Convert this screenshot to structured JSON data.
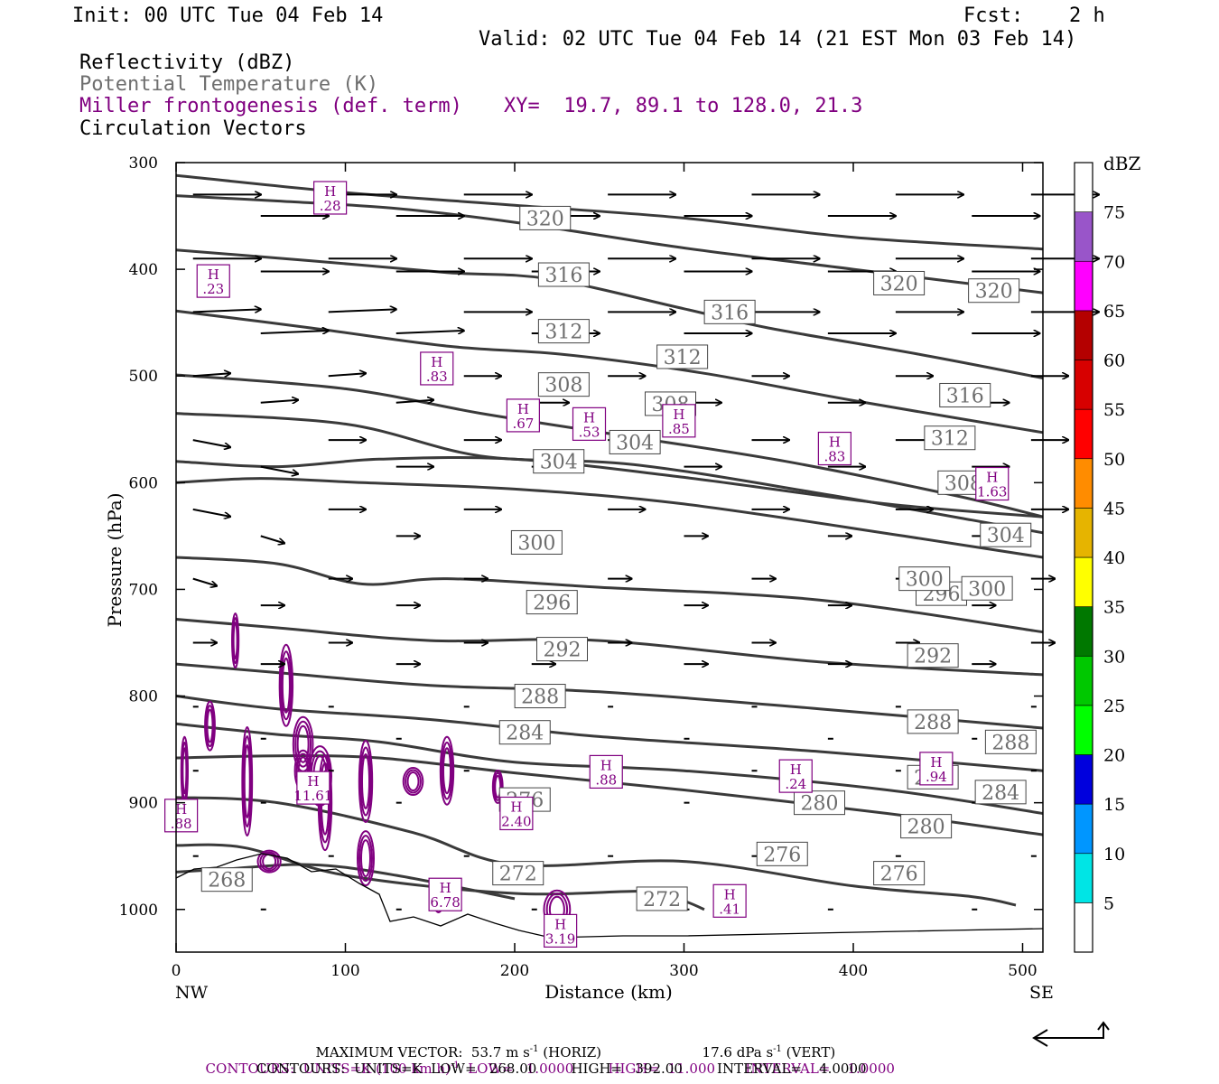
{
  "header": {
    "init": "Init: 00 UTC Tue 04 Feb 14",
    "fcst_label": "Fcst:",
    "fcst_value": "2 h",
    "valid": "Valid: 02 UTC Tue 04 Feb 14 (21 EST Mon 03 Feb 14)",
    "field1": "Reflectivity (dBZ)",
    "field2": "Potential Temperature (K)",
    "field3": "Miller frontogenesis (def. term)",
    "xy": "XY=  19.7, 89.1 to 128.0, 21.3",
    "field4": "Circulation Vectors"
  },
  "colors": {
    "theta": "#3a3a3a",
    "fronto": "#800080",
    "theta_label": "#6e6e6e"
  },
  "chart_data": {
    "type": "line",
    "title": "",
    "xlabel": "Distance (km)",
    "ylabel": "Pressure (hPa)",
    "xlim": [
      0,
      512
    ],
    "ylim": [
      1040,
      300
    ],
    "x_ticks": [
      "0",
      "100",
      "200",
      "300",
      "400",
      "500"
    ],
    "y_ticks": [
      "300",
      "400",
      "500",
      "600",
      "700",
      "800",
      "900",
      "1000"
    ],
    "x_end_labels": {
      "left": "NW",
      "right": "SE"
    },
    "theta_contours": [
      {
        "label": "320",
        "points": [
          [
            0,
            312
          ],
          [
            100,
            328
          ],
          [
            200,
            340
          ],
          [
            300,
            352
          ],
          [
            400,
            370
          ],
          [
            512,
            381
          ]
        ]
      },
      {
        "label": "320",
        "points": [
          [
            0,
            331
          ],
          [
            60,
            336
          ],
          [
            130,
            343
          ],
          [
            200,
            356
          ],
          [
            300,
            380
          ],
          [
            400,
            400
          ],
          [
            512,
            422
          ]
        ]
      },
      {
        "label": "316",
        "points": [
          [
            0,
            382
          ],
          [
            80,
            392
          ],
          [
            160,
            403
          ],
          [
            220,
            409
          ],
          [
            300,
            437
          ],
          [
            350,
            455
          ],
          [
            440,
            480
          ],
          [
            512,
            502
          ]
        ]
      },
      {
        "label": "316",
        "points": [
          [
            0,
            439
          ],
          [
            80,
            455
          ],
          [
            160,
            472
          ],
          [
            230,
            480
          ],
          [
            310,
            497
          ],
          [
            400,
            523
          ],
          [
            512,
            553
          ]
        ]
      },
      {
        "label": "312",
        "points": [
          [
            0,
            499
          ],
          [
            100,
            512
          ],
          [
            180,
            535
          ],
          [
            260,
            555
          ],
          [
            360,
            580
          ],
          [
            460,
            612
          ],
          [
            512,
            632
          ]
        ]
      },
      {
        "label": "308",
        "points": [
          [
            0,
            535
          ],
          [
            100,
            545
          ],
          [
            180,
            575
          ],
          [
            270,
            583
          ],
          [
            380,
            610
          ],
          [
            470,
            635
          ],
          [
            512,
            647
          ]
        ]
      },
      {
        "label": "304",
        "points": [
          [
            0,
            580
          ],
          [
            60,
            585
          ],
          [
            120,
            578
          ],
          [
            200,
            578
          ],
          [
            300,
            595
          ],
          [
            420,
            620
          ],
          [
            512,
            632
          ]
        ]
      },
      {
        "label": "300",
        "points": [
          [
            0,
            600
          ],
          [
            50,
            596
          ],
          [
            110,
            600
          ],
          [
            200,
            606
          ],
          [
            300,
            620
          ],
          [
            430,
            650
          ],
          [
            512,
            670
          ]
        ]
      },
      {
        "label": "300",
        "points": [
          [
            0,
            670
          ],
          [
            60,
            676
          ],
          [
            110,
            695
          ],
          [
            160,
            690
          ],
          [
            250,
            698
          ],
          [
            380,
            710
          ],
          [
            512,
            740
          ]
        ]
      },
      {
        "label": "296",
        "points": [
          [
            0,
            728
          ],
          [
            60,
            736
          ],
          [
            150,
            748
          ],
          [
            250,
            748
          ],
          [
            380,
            768
          ],
          [
            512,
            780
          ]
        ]
      },
      {
        "label": "292",
        "points": [
          [
            0,
            770
          ],
          [
            60,
            778
          ],
          [
            150,
            790
          ],
          [
            250,
            796
          ],
          [
            380,
            812
          ],
          [
            512,
            830
          ]
        ]
      },
      {
        "label": "288",
        "points": [
          [
            0,
            800
          ],
          [
            60,
            812
          ],
          [
            150,
            822
          ],
          [
            250,
            838
          ],
          [
            380,
            852
          ],
          [
            512,
            870
          ]
        ]
      },
      {
        "label": "288",
        "points": [
          [
            0,
            826
          ],
          [
            60,
            836
          ],
          [
            120,
            843
          ],
          [
            200,
            862
          ],
          [
            300,
            870
          ],
          [
            420,
            888
          ],
          [
            512,
            910
          ]
        ]
      },
      {
        "label": "284",
        "points": [
          [
            0,
            858
          ],
          [
            60,
            856
          ],
          [
            120,
            858
          ],
          [
            200,
            872
          ],
          [
            300,
            888
          ],
          [
            420,
            910
          ],
          [
            512,
            930
          ]
        ]
      },
      {
        "label": "276",
        "points": [
          [
            0,
            895
          ],
          [
            60,
            900
          ],
          [
            140,
            928
          ],
          [
            200,
            958
          ],
          [
            300,
            955
          ],
          [
            400,
            978
          ],
          [
            470,
            988
          ],
          [
            496,
            996
          ]
        ]
      },
      {
        "label": "272",
        "points": [
          [
            0,
            940
          ],
          [
            40,
            942
          ],
          [
            100,
            968
          ],
          [
            200,
            985
          ],
          [
            280,
            983
          ],
          [
            300,
            992
          ],
          [
            312,
            1000
          ]
        ]
      },
      {
        "label": "268",
        "points": [
          [
            0,
            965
          ],
          [
            30,
            962
          ],
          [
            80,
            958
          ],
          [
            130,
            968
          ],
          [
            200,
            990
          ]
        ]
      }
    ],
    "theta_labels": [
      {
        "text": "320",
        "x": 218,
        "p": 352
      },
      {
        "text": "316",
        "x": 229,
        "p": 405
      },
      {
        "text": "312",
        "x": 229,
        "p": 458
      },
      {
        "text": "308",
        "x": 229,
        "p": 508
      },
      {
        "text": "304",
        "x": 226,
        "p": 580
      },
      {
        "text": "300",
        "x": 213,
        "p": 656
      },
      {
        "text": "296",
        "x": 222,
        "p": 712
      },
      {
        "text": "292",
        "x": 228,
        "p": 756
      },
      {
        "text": "288",
        "x": 215,
        "p": 800
      },
      {
        "text": "284",
        "x": 206,
        "p": 834
      },
      {
        "text": "276",
        "x": 206,
        "p": 897
      },
      {
        "text": "272",
        "x": 202,
        "p": 966
      },
      {
        "text": "268",
        "x": 30,
        "p": 972
      },
      {
        "text": "304",
        "x": 271,
        "p": 562
      },
      {
        "text": "308",
        "x": 292,
        "p": 526
      },
      {
        "text": "312",
        "x": 299,
        "p": 482
      },
      {
        "text": "316",
        "x": 327,
        "p": 440
      },
      {
        "text": "272",
        "x": 287,
        "p": 990
      },
      {
        "text": "276",
        "x": 358,
        "p": 948
      },
      {
        "text": "280",
        "x": 380,
        "p": 900
      },
      {
        "text": "280",
        "x": 443,
        "p": 922
      },
      {
        "text": "276",
        "x": 427,
        "p": 966
      },
      {
        "text": "284",
        "x": 447,
        "p": 876
      },
      {
        "text": "284",
        "x": 487,
        "p": 890
      },
      {
        "text": "288",
        "x": 447,
        "p": 824
      },
      {
        "text": "288",
        "x": 493,
        "p": 843
      },
      {
        "text": "292",
        "x": 447,
        "p": 762
      },
      {
        "text": "296",
        "x": 452,
        "p": 704
      },
      {
        "text": "300",
        "x": 442,
        "p": 690
      },
      {
        "text": "300",
        "x": 479,
        "p": 699
      },
      {
        "text": "304",
        "x": 490,
        "p": 649
      },
      {
        "text": "308",
        "x": 465,
        "p": 600
      },
      {
        "text": "312",
        "x": 457,
        "p": 558
      },
      {
        "text": "316",
        "x": 466,
        "p": 518
      },
      {
        "text": "320",
        "x": 427,
        "p": 413
      },
      {
        "text": "320",
        "x": 483,
        "p": 420
      }
    ],
    "fronto_maxima": [
      {
        "h": "H",
        "v": ".28",
        "x": 91,
        "p": 333
      },
      {
        "h": "H",
        "v": ".23",
        "x": 22,
        "p": 411
      },
      {
        "h": "H",
        "v": ".83",
        "x": 154,
        "p": 493
      },
      {
        "h": "H",
        "v": ".67",
        "x": 205,
        "p": 537
      },
      {
        "h": "H",
        "v": ".53",
        "x": 244,
        "p": 545
      },
      {
        "h": "H",
        "v": ".85",
        "x": 297,
        "p": 542
      },
      {
        "h": "H",
        "v": ".83",
        "x": 389,
        "p": 568
      },
      {
        "h": "H",
        "v": "1.63",
        "x": 482,
        "p": 601
      },
      {
        "h": "H",
        "v": ".88",
        "x": 254,
        "p": 871
      },
      {
        "h": "H",
        "v": ".24",
        "x": 366,
        "p": 875
      },
      {
        "h": "H",
        "v": ".94",
        "x": 449,
        "p": 868
      },
      {
        "h": "H",
        "v": "11.61",
        "x": 81,
        "p": 886
      },
      {
        "h": "H",
        "v": "2.40",
        "x": 201,
        "p": 910
      },
      {
        "h": "H",
        "v": ".88",
        "x": 3,
        "p": 912
      },
      {
        "h": "H",
        "v": "6.78",
        "x": 159,
        "p": 986
      },
      {
        "h": "H",
        "v": "3.19",
        "x": 227,
        "p": 1020
      },
      {
        "h": "H",
        "v": ".41",
        "x": 327,
        "p": 992
      }
    ],
    "reflectivity_scale": {
      "unit": "dBZ",
      "levels": [
        "5",
        "10",
        "15",
        "20",
        "25",
        "30",
        "35",
        "40",
        "45",
        "50",
        "55",
        "60",
        "65",
        "70",
        "75"
      ],
      "colors": [
        "#ffffff",
        "#00e5e5",
        "#0096ff",
        "#0000dd",
        "#00ff00",
        "#00c800",
        "#007800",
        "#ffff00",
        "#e6b400",
        "#ff8c00",
        "#ff0000",
        "#d70000",
        "#b40000",
        "#ff00ff",
        "#9955c9",
        "#ffffff"
      ]
    }
  },
  "footer": {
    "line1_a": "MAXIMUM VECTOR:  53.7 m s",
    "line1_b": " (HORIZ)",
    "line1_c": "17.6 dPa s",
    "line1_d": " (VERT)",
    "sup": "-1",
    "line2": "CONTOURS:  UNITS=K (100 km h)",
    "line2_b": "  LOW=   1.0000        HIGH=  11.000       INTERVAL=    1.0000",
    "line3": "CONTOURS:  UNITS=K  LOW=   268.00        HIGH=   392.00        INTERVAL=    4.0000"
  }
}
